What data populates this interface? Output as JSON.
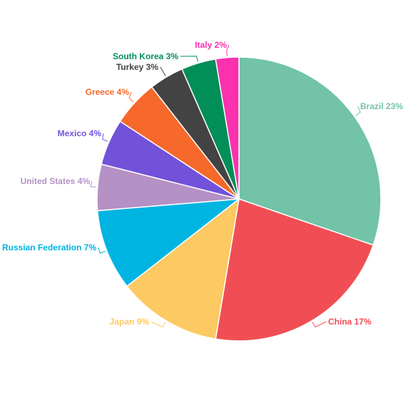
{
  "chart_data": {
    "type": "pie",
    "title": "",
    "slices": [
      {
        "label": "Brazil 23%",
        "value": 23,
        "color": "#72c3a7"
      },
      {
        "label": "China 17%",
        "value": 17,
        "color": "#f04e54"
      },
      {
        "label": "Japan 9%",
        "value": 9,
        "color": "#fcc962"
      },
      {
        "label": "Russian Federation 7%",
        "value": 7,
        "color": "#00b4e2"
      },
      {
        "label": "United States 4%",
        "value": 4,
        "color": "#b591c6"
      },
      {
        "label": "Mexico 4%",
        "value": 4,
        "color": "#7152d9"
      },
      {
        "label": "Greece 4%",
        "value": 4,
        "color": "#f7682b"
      },
      {
        "label": "Turkey 3%",
        "value": 3,
        "color": "#434343"
      },
      {
        "label": "South Korea 3%",
        "value": 3,
        "color": "#028e58"
      },
      {
        "label": "Italy 2%",
        "value": 2,
        "color": "#fb31ad"
      }
    ]
  }
}
